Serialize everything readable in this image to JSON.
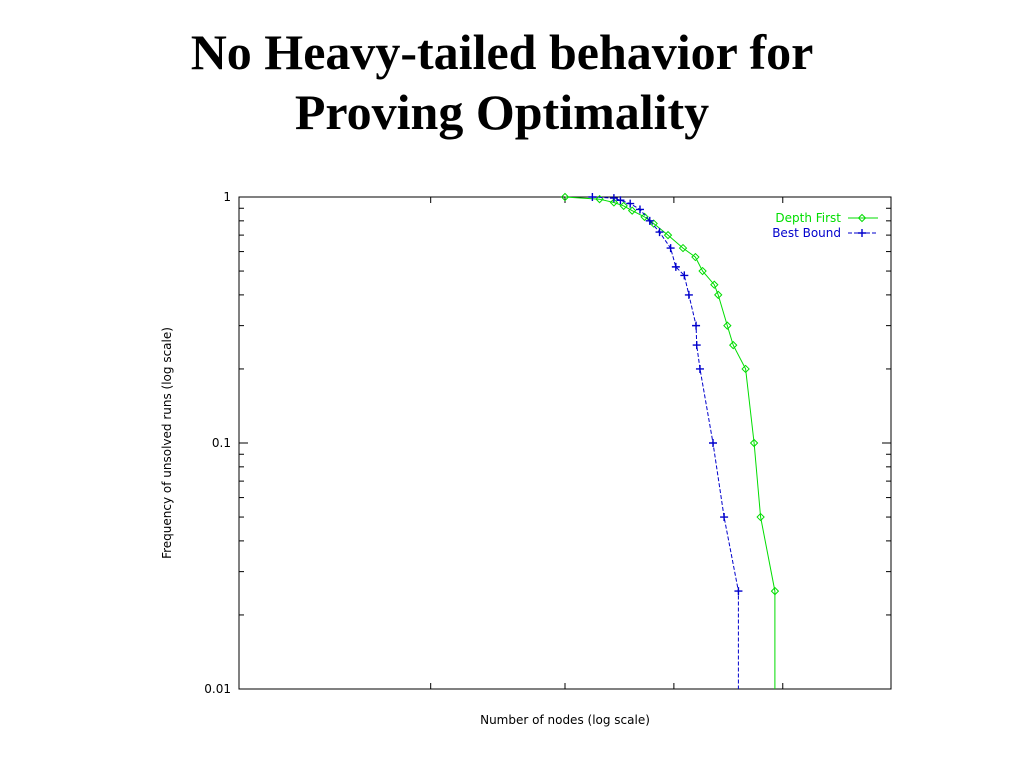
{
  "slide": {
    "title_line1": "No Heavy-tailed behavior for",
    "title_line2": "Proving Optimality"
  },
  "chart_data": {
    "type": "line",
    "xlabel": "Number of nodes (log scale)",
    "ylabel": "Frequency of unsolved runs (log scale)",
    "yscale": "log",
    "xscale": "log",
    "ylim": [
      0.01,
      1
    ],
    "y_ticks": [
      "1",
      "0.1",
      "0.01"
    ],
    "x_tick_labels_shown": false,
    "legend_position": "top-right",
    "series": [
      {
        "name": "Depth First",
        "color": "#00dd00",
        "line_style": "solid",
        "marker": "diamond",
        "points": [
          [
            0.5,
            1.0
          ],
          [
            0.553,
            0.98
          ],
          [
            0.575,
            0.95
          ],
          [
            0.59,
            0.92
          ],
          [
            0.603,
            0.88
          ],
          [
            0.622,
            0.83
          ],
          [
            0.636,
            0.78
          ],
          [
            0.658,
            0.7
          ],
          [
            0.681,
            0.62
          ],
          [
            0.7,
            0.57
          ],
          [
            0.711,
            0.5
          ],
          [
            0.729,
            0.44
          ],
          [
            0.735,
            0.4
          ],
          [
            0.749,
            0.3
          ],
          [
            0.758,
            0.25
          ],
          [
            0.777,
            0.2
          ],
          [
            0.79,
            0.1
          ],
          [
            0.8,
            0.05
          ],
          [
            0.822,
            0.025
          ],
          [
            0.822,
            0.01
          ]
        ]
      },
      {
        "name": "Best Bound",
        "color": "#0000cc",
        "line_style": "dashed",
        "marker": "plus",
        "points": [
          [
            0.542,
            1.0
          ],
          [
            0.575,
            0.99
          ],
          [
            0.585,
            0.97
          ],
          [
            0.6,
            0.94
          ],
          [
            0.615,
            0.89
          ],
          [
            0.63,
            0.8
          ],
          [
            0.645,
            0.72
          ],
          [
            0.662,
            0.62
          ],
          [
            0.67,
            0.52
          ],
          [
            0.683,
            0.48
          ],
          [
            0.69,
            0.4
          ],
          [
            0.701,
            0.3
          ],
          [
            0.702,
            0.25
          ],
          [
            0.707,
            0.2
          ],
          [
            0.727,
            0.1
          ],
          [
            0.744,
            0.05
          ],
          [
            0.766,
            0.025
          ],
          [
            0.766,
            0.01
          ]
        ]
      }
    ]
  }
}
